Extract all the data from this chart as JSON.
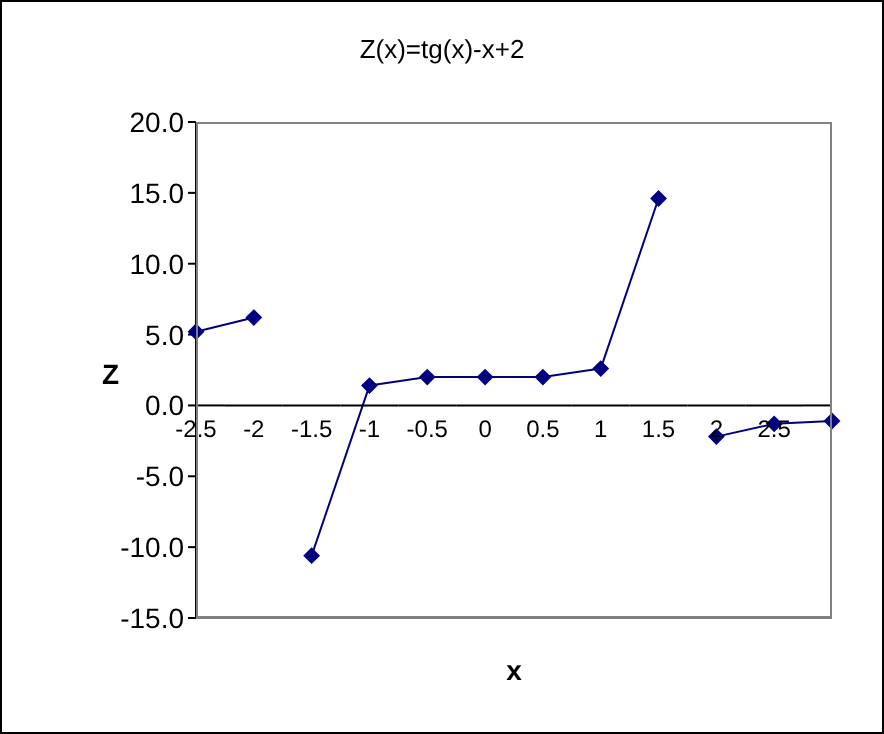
{
  "chart_data": {
    "type": "line",
    "title": "Z(x)=tg(x)-x+2",
    "xlabel": "x",
    "ylabel": "Z",
    "categories": [
      "-2.5",
      "-2",
      "-1.5",
      "-1",
      "-0.5",
      "0",
      "0.5",
      "1",
      "1.5",
      "2",
      "2.5",
      null
    ],
    "series": [
      {
        "color": "#000080",
        "values": [
          5.2,
          6.2,
          null,
          null,
          null,
          null,
          null,
          null,
          null,
          null,
          null,
          null
        ]
      },
      {
        "color": "#000080",
        "values": [
          null,
          null,
          -10.6,
          1.4,
          2.0,
          2.0,
          2.0,
          2.6,
          14.6,
          null,
          null,
          null
        ]
      },
      {
        "color": "#000080",
        "values": [
          null,
          null,
          null,
          null,
          null,
          null,
          null,
          null,
          null,
          -2.2,
          -1.3,
          -1.1
        ]
      }
    ],
    "ylim": [
      -15,
      20
    ],
    "yticks": [
      {
        "value": -15,
        "label": "-15.0"
      },
      {
        "value": -10,
        "label": "-10.0"
      },
      {
        "value": -5,
        "label": "-5.0"
      },
      {
        "value": 0,
        "label": "0.0"
      },
      {
        "value": 5,
        "label": "5.0"
      },
      {
        "value": 10,
        "label": "10.0"
      },
      {
        "value": 15,
        "label": "15.0"
      },
      {
        "value": 20,
        "label": "20.0"
      }
    ],
    "grid": false,
    "legend": false,
    "marker": "diamond",
    "line_style": "solid"
  }
}
